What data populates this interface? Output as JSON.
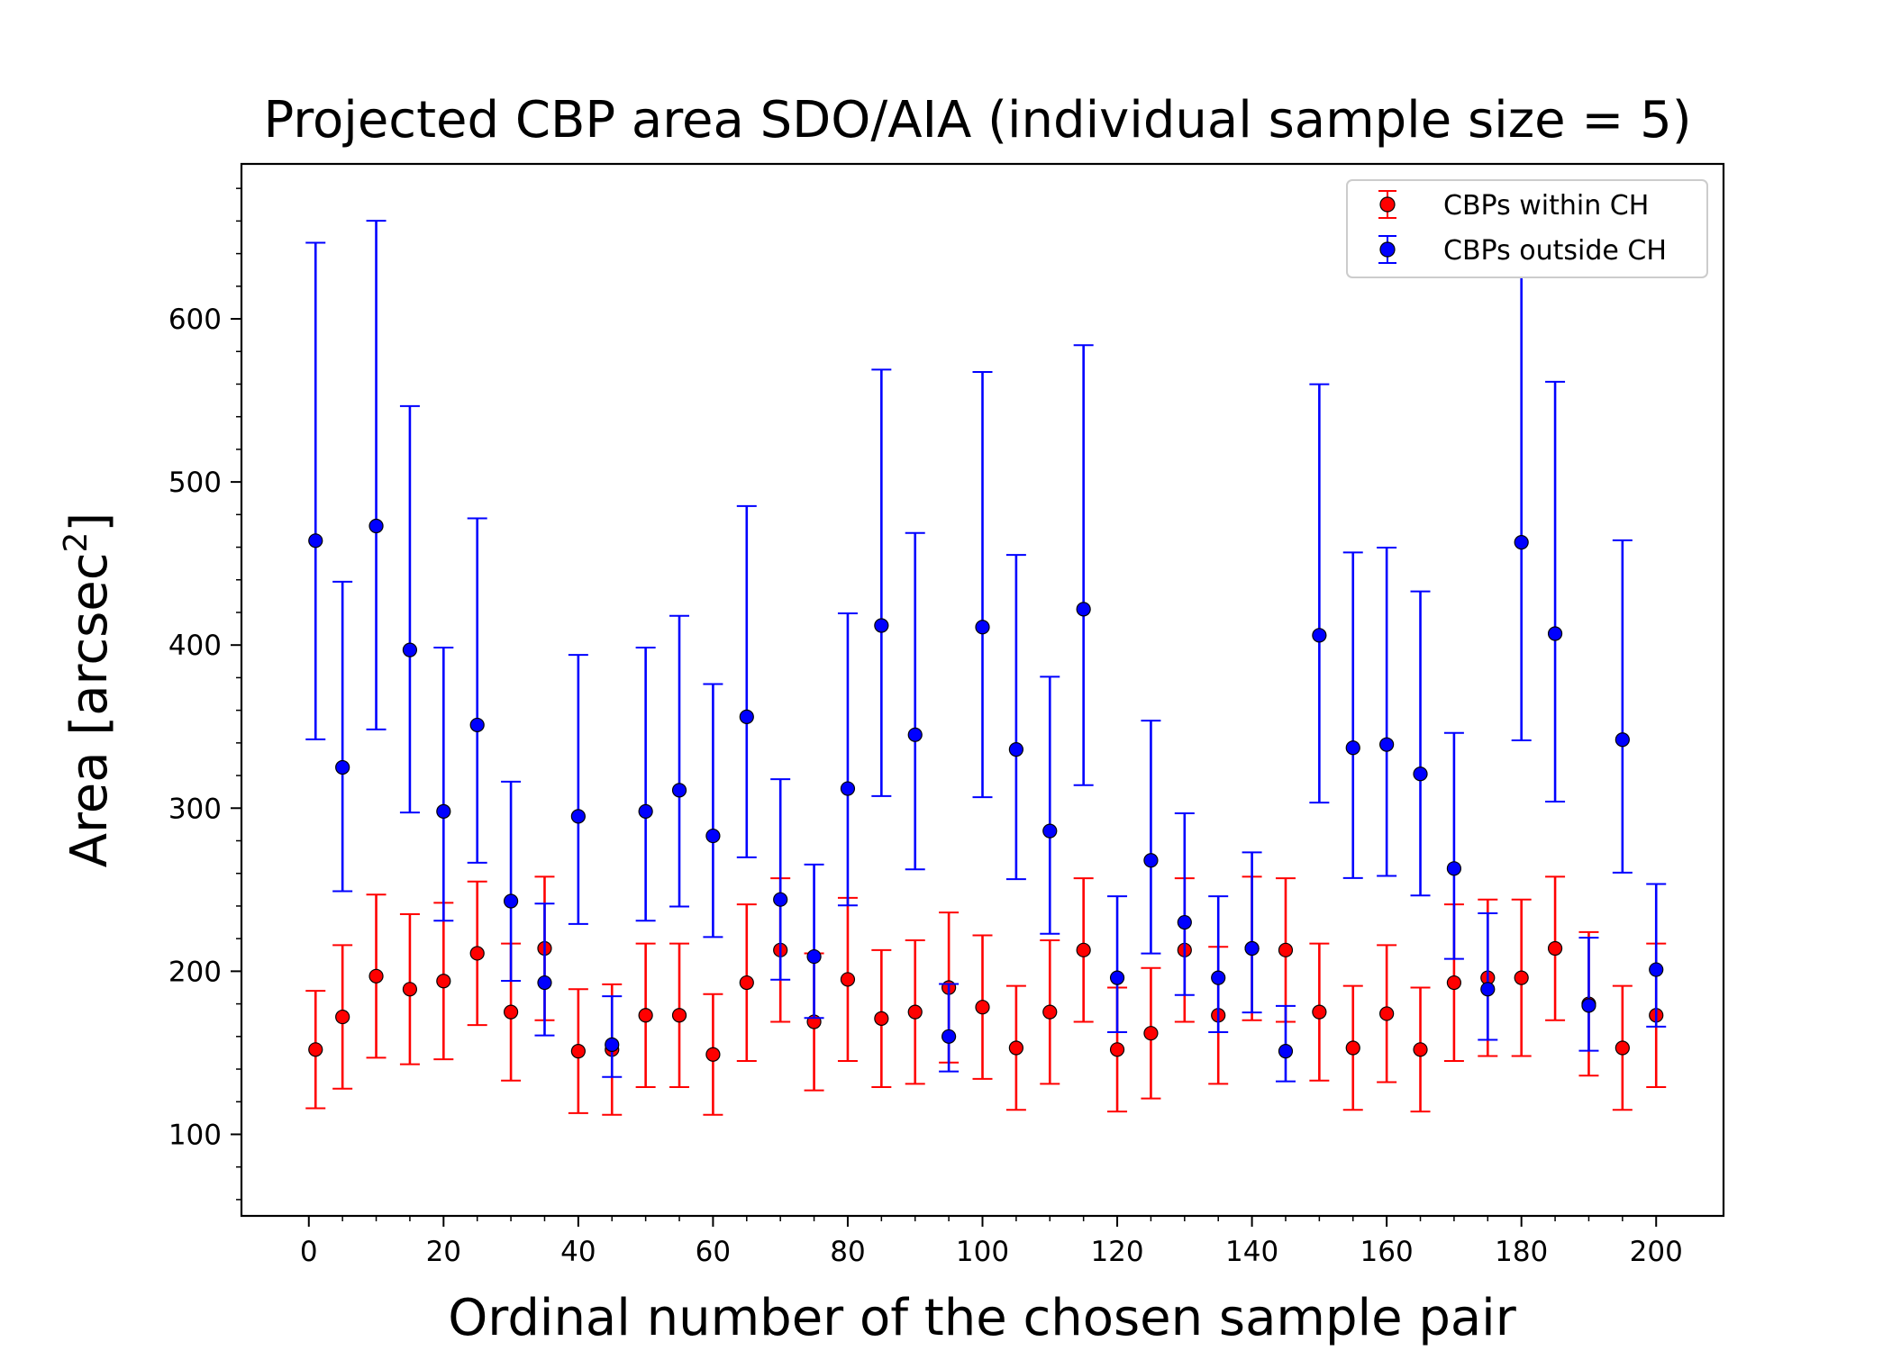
{
  "chart_data": {
    "type": "scatter",
    "title": "Projected CBP area SDO/AIA (individual sample size = 5)",
    "xlabel": "Ordinal number of the chosen sample pair",
    "ylabel_main": "Area [arcsec",
    "ylabel_sup": "2",
    "ylabel_close": "]",
    "xlim": [
      -10,
      210
    ],
    "ylim": [
      50,
      695
    ],
    "x_ticks": [
      0,
      20,
      40,
      60,
      80,
      100,
      120,
      140,
      160,
      180,
      200
    ],
    "y_ticks": [
      100,
      200,
      300,
      400,
      500,
      600
    ],
    "legend_position": "top-right",
    "series": [
      {
        "name": "CBPs within CH",
        "color": "#ff0000",
        "x": [
          1,
          5,
          10,
          15,
          20,
          25,
          30,
          35,
          40,
          45,
          50,
          55,
          60,
          65,
          70,
          75,
          80,
          85,
          90,
          95,
          100,
          105,
          110,
          115,
          120,
          125,
          130,
          135,
          140,
          145,
          150,
          155,
          160,
          165,
          170,
          175,
          180,
          185,
          190,
          195,
          200
        ],
        "y": [
          152,
          172,
          197,
          189,
          194,
          211,
          175,
          214,
          151,
          152,
          173,
          173,
          149,
          193,
          213,
          169,
          195,
          171,
          175,
          190,
          178,
          153,
          175,
          213,
          152,
          162,
          213,
          173,
          214,
          213,
          175,
          153,
          174,
          152,
          193,
          196,
          196,
          214,
          180,
          153,
          173
        ],
        "err": [
          36,
          44,
          50,
          46,
          48,
          44,
          42,
          44,
          38,
          40,
          44,
          44,
          37,
          48,
          44,
          42,
          50,
          42,
          44,
          46,
          44,
          38,
          44,
          44,
          38,
          40,
          44,
          42,
          44,
          44,
          42,
          38,
          42,
          38,
          48,
          48,
          48,
          44,
          44,
          38,
          44
        ]
      },
      {
        "name": "CBPs outside CH",
        "color": "#0000ff",
        "x": [
          1,
          5,
          10,
          15,
          20,
          25,
          30,
          35,
          40,
          45,
          50,
          55,
          60,
          65,
          70,
          75,
          80,
          85,
          90,
          95,
          100,
          105,
          110,
          115,
          120,
          125,
          130,
          135,
          140,
          145,
          150,
          155,
          160,
          165,
          170,
          175,
          180,
          185,
          190,
          195,
          200
        ],
        "y": [
          464,
          325,
          473,
          397,
          298,
          351,
          243,
          193,
          295,
          155,
          298,
          311,
          283,
          356,
          244,
          209,
          312,
          412,
          345,
          160,
          411,
          336,
          286,
          422,
          196,
          268,
          230,
          196,
          214,
          151,
          406,
          337,
          339,
          321,
          263,
          189,
          463,
          407,
          179,
          342,
          201
        ]
      }
    ]
  }
}
